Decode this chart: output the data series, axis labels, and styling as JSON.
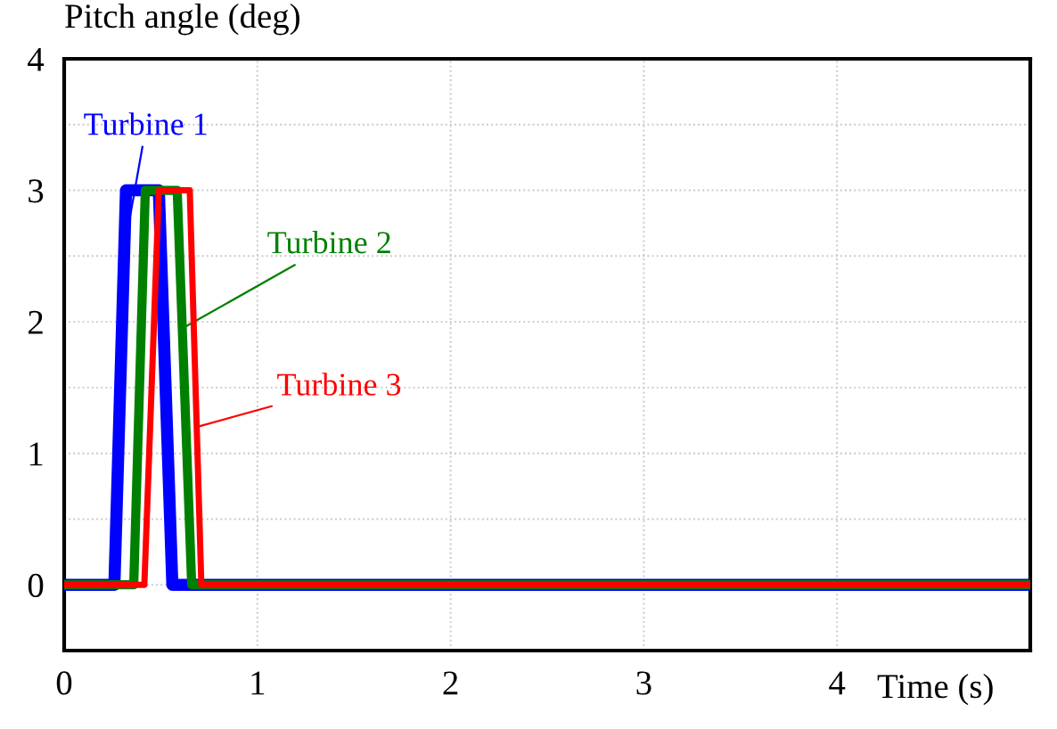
{
  "chart_data": {
    "type": "line",
    "xlabel": "Time (s)",
    "ylabel": "Pitch angle (deg)",
    "xlim": [
      0,
      5
    ],
    "ylim": [
      -0.5,
      4
    ],
    "xticks": [
      0,
      1,
      2,
      3,
      4
    ],
    "yticks": [
      0,
      1,
      2,
      3,
      4
    ],
    "grid": true,
    "legend": false,
    "marker": "none",
    "line_style": "solid",
    "series": [
      {
        "name": "Turbine 1",
        "color": "#0000ff",
        "x": [
          0,
          0.26,
          0.32,
          0.49,
          0.56,
          5
        ],
        "values": [
          0,
          0,
          3,
          3,
          0,
          0
        ]
      },
      {
        "name": "Turbine 2",
        "color": "#008000",
        "x": [
          0,
          0.36,
          0.42,
          0.585,
          0.66,
          5
        ],
        "values": [
          0,
          0,
          3,
          3,
          0,
          0
        ]
      },
      {
        "name": "Turbine 3",
        "color": "#ff0000",
        "x": [
          0,
          0.415,
          0.49,
          0.65,
          0.71,
          5
        ],
        "values": [
          0,
          0,
          3,
          3,
          0,
          0
        ]
      }
    ]
  }
}
